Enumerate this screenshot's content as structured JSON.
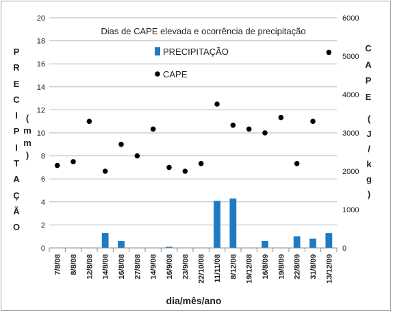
{
  "chart_data": {
    "type": "bar",
    "title": "Dias de CAPE elevada e ocorrência de precipitação",
    "xlabel": "dia/mês/ano",
    "ylabel_left": [
      "P",
      "R",
      "E",
      "C",
      "I",
      "P",
      "I",
      "T",
      "A",
      "Ç",
      "Ã",
      "O"
    ],
    "ylabel_left_unit": [
      "(",
      "m",
      "m",
      ")"
    ],
    "ylabel_right": [
      "C",
      "A",
      "P",
      "E"
    ],
    "ylabel_right_unit": [
      "(",
      "J",
      "/",
      "k",
      "g",
      ")"
    ],
    "categories": [
      "7/8/08",
      "8/8/08",
      "12/8/08",
      "14/8/08",
      "16/8/08",
      "27/8/08",
      "14/9/08",
      "16/9/08",
      "23/9/08",
      "22/10/08",
      "11/11/08",
      "8/12/08",
      "19/12/08",
      "16/8/09",
      "19/8/09",
      "22/8/09",
      "31/8/09",
      "13/12/09"
    ],
    "series": [
      {
        "name": "PRECIPITAÇÃO",
        "type": "bar",
        "axis": "left",
        "color": "#1f7ac4",
        "values": [
          0,
          0,
          0,
          1.3,
          0.6,
          0,
          0,
          0.1,
          0,
          0,
          4.1,
          4.3,
          0,
          0.6,
          0,
          1.0,
          0.8,
          1.3
        ]
      },
      {
        "name": "CAPE",
        "type": "scatter",
        "axis": "right",
        "color": "#000000",
        "values": [
          2150,
          2250,
          3300,
          2000,
          2700,
          2400,
          3100,
          2100,
          2000,
          2200,
          3750,
          3200,
          3100,
          3000,
          3400,
          2200,
          3300,
          5100
        ]
      }
    ],
    "ylim_left": [
      0,
      20
    ],
    "yticks_left": [
      "0",
      "2",
      "4",
      "6",
      "8",
      "10",
      "12",
      "14",
      "16",
      "18",
      "20"
    ],
    "ylim_right": [
      0,
      6000
    ],
    "yticks_right": [
      "0",
      "1000",
      "2000",
      "3000",
      "4000",
      "5000",
      "6000"
    ],
    "grid": true,
    "legend_position": "top-center"
  }
}
